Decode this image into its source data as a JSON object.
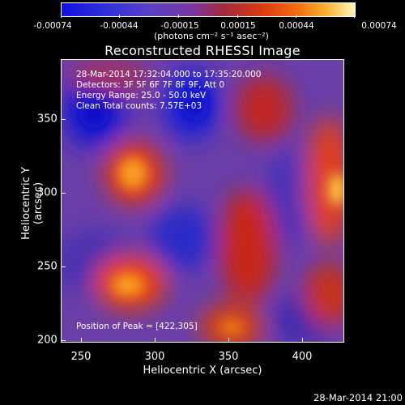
{
  "colorbar": {
    "tick_labels": [
      "-0.00074",
      "-0.00044",
      "-0.00015",
      "0.00015",
      "0.00044",
      "0.00074"
    ],
    "units": "(photons cm⁻² s⁻¹ asec⁻²)"
  },
  "title": "Reconstructed RHESSI Image",
  "info": {
    "time": "28-Mar-2014 17:32:04.000 to 17:35:20.000",
    "detectors": "Detectors: 3F 5F 6F 7F 8F 9F, Att 0",
    "energy": "Energy Range: 25.0 - 50.0 keV",
    "clean": "Clean      Total counts: 7.57E+03",
    "peak": "Position of Peak = [422,305]"
  },
  "axes": {
    "xlabel": "Heliocentric X (arcsec)",
    "ylabel": "Heliocentric Y (arcsec)",
    "x_ticks": [
      "250",
      "300",
      "350",
      "400"
    ],
    "y_ticks": [
      "350",
      "300",
      "250",
      "200"
    ]
  },
  "footer": "28-Mar-2014 21:00"
}
